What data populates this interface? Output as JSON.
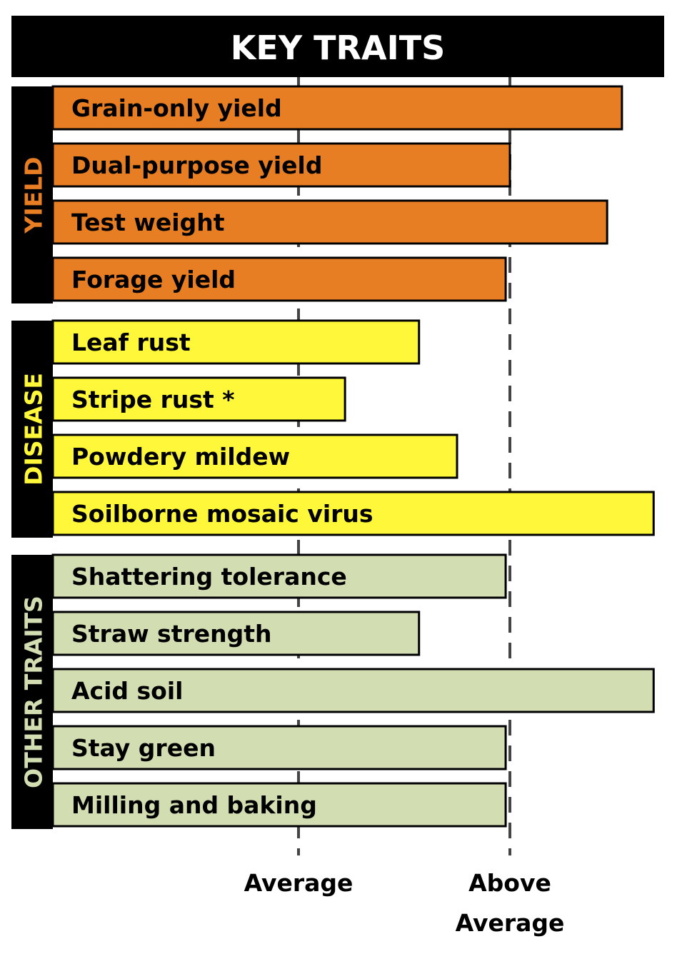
{
  "chart_data": {
    "type": "bar",
    "orientation": "horizontal",
    "title": "KEY TRAITS",
    "x_ticks": [
      {
        "value": 1,
        "label_lines": [
          "Average"
        ]
      },
      {
        "value": 2,
        "label_lines": [
          "Above",
          "Average"
        ]
      }
    ],
    "xlim": [
      -1.18,
      2.69
    ],
    "grid": "dashed vertical lines at tick values",
    "groups": [
      {
        "name": "YIELD",
        "bar_color": "#E87E23",
        "label_color": "#E87E23",
        "bars": [
          {
            "label": "Grain-only yield",
            "value": 2.53
          },
          {
            "label": "Dual-purpose yield",
            "value": 2.0
          },
          {
            "label": "Test weight",
            "value": 2.46
          },
          {
            "label": "Forage yield",
            "value": 1.98
          }
        ]
      },
      {
        "name": "DISEASE",
        "bar_color": "#FFF73A",
        "label_color": "#FFF73A",
        "bars": [
          {
            "label": "Leaf rust",
            "value": 1.57
          },
          {
            "label": "Stripe rust *",
            "value": 1.22
          },
          {
            "label": "Powdery mildew",
            "value": 1.75
          },
          {
            "label": "Soilborne mosaic virus",
            "value": 2.68
          }
        ]
      },
      {
        "name": "OTHER TRAITS",
        "bar_color": "#D2DDB2",
        "label_color": "#D2DDB2",
        "bars": [
          {
            "label": "Shattering tolerance",
            "value": 1.98
          },
          {
            "label": "Straw strength",
            "value": 1.57
          },
          {
            "label": "Acid soil",
            "value": 2.68
          },
          {
            "label": "Stay green",
            "value": 1.98
          },
          {
            "label": "Milling and baking",
            "value": 1.98
          }
        ]
      }
    ]
  }
}
